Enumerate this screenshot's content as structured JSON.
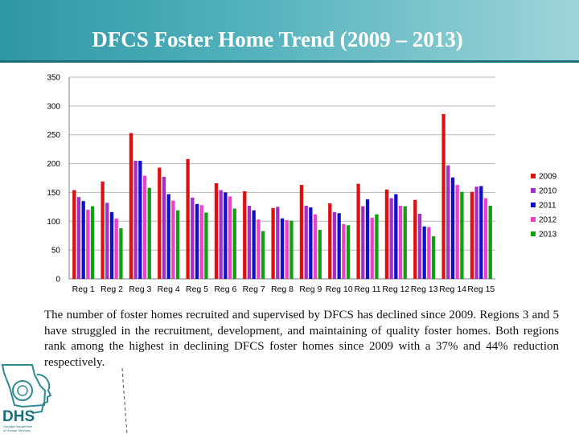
{
  "header": {
    "title": "DFCS Foster Home Trend (2009 – 2013)"
  },
  "chart_data": {
    "type": "bar",
    "title": "",
    "xlabel": "",
    "ylabel": "",
    "ylim": [
      0,
      350
    ],
    "yticks": [
      0,
      50,
      100,
      150,
      200,
      250,
      300,
      350
    ],
    "grid": true,
    "legend": "right",
    "categories": [
      "Reg 1",
      "Reg 2",
      "Reg 3",
      "Reg 4",
      "Reg 5",
      "Reg 6",
      "Reg 7",
      "Reg 8",
      "Reg 9",
      "Reg 10",
      "Reg 11",
      "Reg 12",
      "Reg 13",
      "Reg 14",
      "Reg 15"
    ],
    "series": [
      {
        "name": "2009",
        "color": "#e01010",
        "values": [
          154,
          169,
          253,
          193,
          208,
          166,
          152,
          123,
          163,
          131,
          165,
          155,
          137,
          286,
          151
        ]
      },
      {
        "name": "2010",
        "color": "#a030c8",
        "values": [
          142,
          132,
          205,
          177,
          141,
          154,
          127,
          125,
          127,
          116,
          126,
          140,
          113,
          197,
          160
        ]
      },
      {
        "name": "2011",
        "color": "#1010c8",
        "values": [
          135,
          116,
          205,
          147,
          130,
          150,
          119,
          105,
          124,
          114,
          138,
          147,
          91,
          176,
          161
        ]
      },
      {
        "name": "2012",
        "color": "#f040c8",
        "values": [
          120,
          105,
          179,
          136,
          128,
          143,
          103,
          102,
          112,
          95,
          106,
          127,
          90,
          163,
          140
        ]
      },
      {
        "name": "2013",
        "color": "#10a010",
        "values": [
          126,
          88,
          158,
          119,
          115,
          122,
          83,
          101,
          85,
          93,
          112,
          126,
          74,
          151,
          127
        ]
      }
    ]
  },
  "caption": {
    "text": "The number of foster homes recruited and supervised by DFCS has declined since 2009. Regions 3 and 5 have struggled in the recruitment, development, and maintaining of quality foster homes. Both regions rank among the highest in declining DFCS foster homes since 2009 with a 37% and 44% reduction respectively."
  },
  "logo": {
    "text": "DHS",
    "subtext": "Georgia Department of Human Services",
    "color": "#1a6e78"
  }
}
